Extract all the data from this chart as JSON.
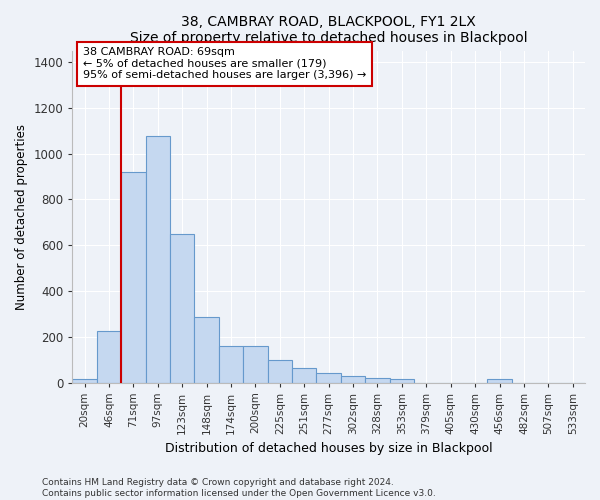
{
  "title": "38, CAMBRAY ROAD, BLACKPOOL, FY1 2LX",
  "subtitle": "Size of property relative to detached houses in Blackpool",
  "xlabel": "Distribution of detached houses by size in Blackpool",
  "ylabel": "Number of detached properties",
  "bar_labels": [
    "20sqm",
    "46sqm",
    "71sqm",
    "97sqm",
    "123sqm",
    "148sqm",
    "174sqm",
    "200sqm",
    "225sqm",
    "251sqm",
    "277sqm",
    "302sqm",
    "328sqm",
    "353sqm",
    "379sqm",
    "405sqm",
    "430sqm",
    "456sqm",
    "482sqm",
    "507sqm",
    "533sqm"
  ],
  "bar_values": [
    15,
    225,
    920,
    1075,
    650,
    285,
    160,
    160,
    100,
    65,
    42,
    28,
    20,
    15,
    0,
    0,
    0,
    15,
    0,
    0,
    0
  ],
  "bar_color": "#c5d8f0",
  "bar_edge_color": "#6699cc",
  "marker_color": "#cc0000",
  "annotation_line1": "38 CAMBRAY ROAD: 69sqm",
  "annotation_line2": "← 5% of detached houses are smaller (179)",
  "annotation_line3": "95% of semi-detached houses are larger (3,396) →",
  "ylim": [
    0,
    1450
  ],
  "yticks": [
    0,
    200,
    400,
    600,
    800,
    1000,
    1200,
    1400
  ],
  "footer1": "Contains HM Land Registry data © Crown copyright and database right 2024.",
  "footer2": "Contains public sector information licensed under the Open Government Licence v3.0.",
  "bg_color": "#eef2f8",
  "grid_color": "#ffffff",
  "title_fontsize": 11,
  "subtitle_fontsize": 10
}
